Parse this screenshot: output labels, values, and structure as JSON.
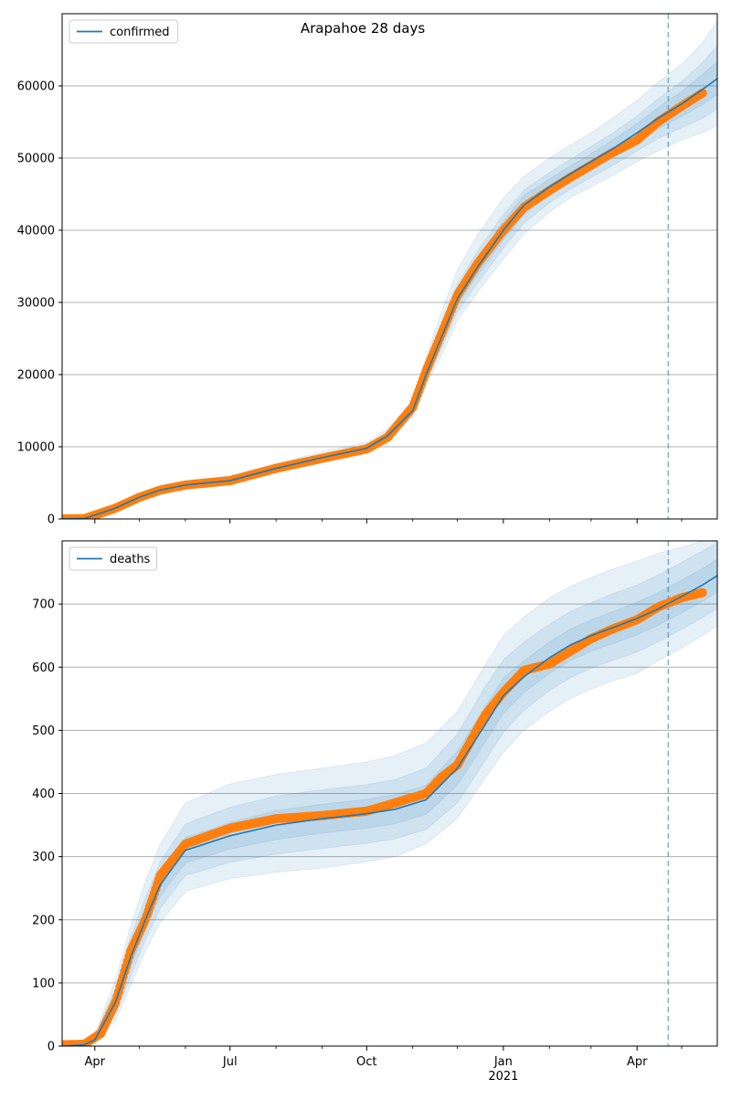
{
  "title": "Arapahoe 28 days",
  "colors": {
    "line": "#1f77b4",
    "points": "#ff7f0e",
    "band": "#1f77b4",
    "grid": "#b0b0b0",
    "vline": "#1f77b4"
  },
  "x_axis": {
    "range": [
      "2020-03-10",
      "2021-05-25"
    ],
    "major_ticks": [
      {
        "date": "2020-04-01",
        "label": "Apr",
        "sublabel": ""
      },
      {
        "date": "2020-07-01",
        "label": "Jul",
        "sublabel": ""
      },
      {
        "date": "2020-10-01",
        "label": "Oct",
        "sublabel": ""
      },
      {
        "date": "2021-01-01",
        "label": "Jan",
        "sublabel": "2021"
      },
      {
        "date": "2021-04-01",
        "label": "Apr",
        "sublabel": ""
      }
    ],
    "minor_ticks": [
      "2020-05-01",
      "2020-06-01",
      "2020-08-01",
      "2020-09-01",
      "2020-11-01",
      "2020-12-01",
      "2021-02-01",
      "2021-03-01",
      "2021-05-01"
    ]
  },
  "forecast_start": "2021-04-22",
  "chart_data": [
    {
      "type": "line",
      "legend": "confirmed",
      "legend_position": "upper-left",
      "grid": "horizontal",
      "ylim": [
        0,
        70000
      ],
      "yticks": [
        0,
        10000,
        20000,
        30000,
        40000,
        50000,
        60000
      ],
      "fit": {
        "dates": [
          "2020-03-10",
          "2020-03-25",
          "2020-04-15",
          "2020-05-01",
          "2020-05-15",
          "2020-06-01",
          "2020-07-01",
          "2020-08-01",
          "2020-09-01",
          "2020-10-01",
          "2020-10-15",
          "2020-11-01",
          "2020-11-10",
          "2020-11-20",
          "2020-12-01",
          "2020-12-15",
          "2021-01-01",
          "2021-01-15",
          "2021-02-01",
          "2021-02-15",
          "2021-03-01",
          "2021-03-15",
          "2021-04-01",
          "2021-04-15",
          "2021-05-01",
          "2021-05-15",
          "2021-05-25"
        ],
        "values": [
          0,
          50,
          1500,
          3000,
          4000,
          4700,
          5300,
          7000,
          8500,
          9800,
          11500,
          15000,
          20000,
          25000,
          30500,
          35000,
          40000,
          43500,
          46000,
          47800,
          49500,
          51200,
          53500,
          55500,
          57500,
          59500,
          61000
        ]
      },
      "bands": [
        {
          "name": "band-outer",
          "lower": [
            0,
            0,
            1300,
            2700,
            3600,
            4300,
            4900,
            6500,
            8000,
            9300,
            11000,
            14000,
            18500,
            22500,
            27500,
            31500,
            36000,
            39500,
            42500,
            44500,
            46000,
            47500,
            49500,
            51000,
            52500,
            53500,
            54500
          ],
          "upper": [
            0,
            120,
            1800,
            3400,
            4500,
            5300,
            6000,
            7700,
            9300,
            10600,
            12500,
            16500,
            22500,
            28500,
            34500,
            39500,
            44500,
            47500,
            50000,
            51800,
            53500,
            55500,
            58000,
            60500,
            63000,
            66000,
            69000
          ]
        },
        {
          "name": "band-mid",
          "lower": [
            0,
            10,
            1380,
            2820,
            3760,
            4450,
            5050,
            6700,
            8200,
            9500,
            11200,
            14400,
            19100,
            23500,
            28700,
            32800,
            37500,
            41000,
            43800,
            45700,
            47300,
            48900,
            51000,
            52700,
            54200,
            55500,
            56800
          ],
          "upper": [
            0,
            90,
            1650,
            3200,
            4250,
            5000,
            5650,
            7350,
            8900,
            10200,
            12000,
            15800,
            21200,
            26800,
            32500,
            37200,
            42200,
            45600,
            48000,
            49800,
            51600,
            53400,
            55800,
            58200,
            60600,
            63200,
            65600
          ]
        },
        {
          "name": "band-inner",
          "lower": [
            0,
            25,
            1440,
            2910,
            3880,
            4580,
            5180,
            6850,
            8350,
            9650,
            11350,
            14700,
            19550,
            24300,
            29600,
            33900,
            38700,
            42200,
            44900,
            46700,
            48400,
            50000,
            52200,
            54000,
            55800,
            57400,
            58800
          ],
          "upper": [
            0,
            70,
            1560,
            3090,
            4120,
            4820,
            5420,
            7150,
            8650,
            9950,
            11650,
            15300,
            20450,
            25700,
            31400,
            36100,
            41300,
            44800,
            47100,
            48900,
            50600,
            52400,
            54800,
            57000,
            59200,
            61600,
            63300
          ]
        }
      ],
      "observed": {
        "dates": [
          "2020-03-10",
          "2020-03-25",
          "2020-04-15",
          "2020-05-01",
          "2020-05-15",
          "2020-06-01",
          "2020-07-01",
          "2020-08-01",
          "2020-09-01",
          "2020-10-01",
          "2020-10-15",
          "2020-11-01",
          "2020-11-10",
          "2020-11-20",
          "2020-12-01",
          "2020-12-15",
          "2021-01-01",
          "2021-01-15",
          "2021-02-01",
          "2021-02-15",
          "2021-03-01",
          "2021-03-15",
          "2021-04-01",
          "2021-04-15",
          "2021-05-01",
          "2021-05-15"
        ],
        "values": [
          0,
          50,
          1500,
          3000,
          4000,
          4700,
          5300,
          7000,
          8400,
          9700,
          11300,
          15500,
          20500,
          25500,
          31000,
          35500,
          40000,
          43200,
          45500,
          47300,
          49000,
          50700,
          52500,
          55000,
          57200,
          59000
        ]
      }
    },
    {
      "type": "line",
      "legend": "deaths",
      "legend_position": "upper-left",
      "grid": "horizontal",
      "ylim": [
        0,
        800
      ],
      "yticks": [
        0,
        100,
        200,
        300,
        400,
        500,
        600,
        700
      ],
      "fit": {
        "dates": [
          "2020-03-10",
          "2020-03-25",
          "2020-04-01",
          "2020-04-15",
          "2020-04-25",
          "2020-05-05",
          "2020-05-15",
          "2020-06-01",
          "2020-07-01",
          "2020-08-01",
          "2020-09-01",
          "2020-10-01",
          "2020-10-20",
          "2020-11-10",
          "2020-12-01",
          "2020-12-20",
          "2021-01-01",
          "2021-01-15",
          "2021-02-01",
          "2021-02-15",
          "2021-03-01",
          "2021-03-15",
          "2021-04-01",
          "2021-04-15",
          "2021-05-01",
          "2021-05-15",
          "2021-05-25"
        ],
        "values": [
          0,
          2,
          10,
          70,
          140,
          200,
          255,
          310,
          333,
          350,
          360,
          368,
          375,
          390,
          440,
          510,
          555,
          585,
          615,
          635,
          650,
          662,
          677,
          692,
          712,
          730,
          745
        ]
      },
      "bands": [
        {
          "name": "band-outer",
          "lower": [
            0,
            0,
            4,
            40,
            95,
            150,
            195,
            245,
            265,
            275,
            282,
            292,
            300,
            320,
            360,
            425,
            465,
            500,
            530,
            550,
            565,
            578,
            590,
            610,
            630,
            650,
            665
          ],
          "upper": [
            0,
            5,
            20,
            105,
            190,
            260,
            320,
            385,
            415,
            430,
            440,
            450,
            460,
            480,
            530,
            605,
            650,
            680,
            710,
            728,
            742,
            755,
            768,
            780,
            790,
            800,
            800
          ]
        },
        {
          "name": "band-mid",
          "lower": [
            0,
            1,
            6,
            50,
            110,
            168,
            218,
            270,
            291,
            304,
            313,
            321,
            328,
            343,
            385,
            453,
            497,
            532,
            563,
            583,
            598,
            610,
            624,
            640,
            660,
            678,
            693
          ],
          "upper": [
            0,
            4,
            16,
            92,
            172,
            234,
            292,
            352,
            378,
            396,
            406,
            414,
            422,
            440,
            494,
            570,
            612,
            640,
            668,
            688,
            702,
            716,
            730,
            746,
            766,
            784,
            797
          ]
        },
        {
          "name": "band-inner",
          "lower": [
            0,
            1,
            8,
            60,
            125,
            185,
            238,
            290,
            312,
            327,
            337,
            345,
            352,
            367,
            413,
            482,
            527,
            560,
            590,
            610,
            625,
            637,
            651,
            666,
            686,
            704,
            719
          ],
          "upper": [
            0,
            3,
            12,
            80,
            155,
            215,
            272,
            330,
            354,
            373,
            383,
            391,
            398,
            413,
            467,
            538,
            583,
            610,
            640,
            660,
            675,
            687,
            703,
            718,
            738,
            756,
            771
          ]
        }
      ],
      "observed": {
        "dates": [
          "2020-03-10",
          "2020-03-25",
          "2020-04-05",
          "2020-04-15",
          "2020-04-25",
          "2020-05-05",
          "2020-05-15",
          "2020-06-01",
          "2020-07-01",
          "2020-08-01",
          "2020-09-01",
          "2020-10-01",
          "2020-10-20",
          "2020-11-10",
          "2020-11-20",
          "2020-12-01",
          "2020-12-20",
          "2021-01-01",
          "2021-01-15",
          "2021-02-01",
          "2021-02-15",
          "2021-03-01",
          "2021-03-15",
          "2021-04-01",
          "2021-04-15",
          "2021-05-01",
          "2021-05-15"
        ],
        "values": [
          2,
          3,
          20,
          70,
          150,
          200,
          270,
          320,
          345,
          360,
          365,
          372,
          385,
          400,
          425,
          445,
          525,
          560,
          595,
          605,
          625,
          645,
          660,
          675,
          695,
          710,
          718
        ]
      }
    }
  ]
}
